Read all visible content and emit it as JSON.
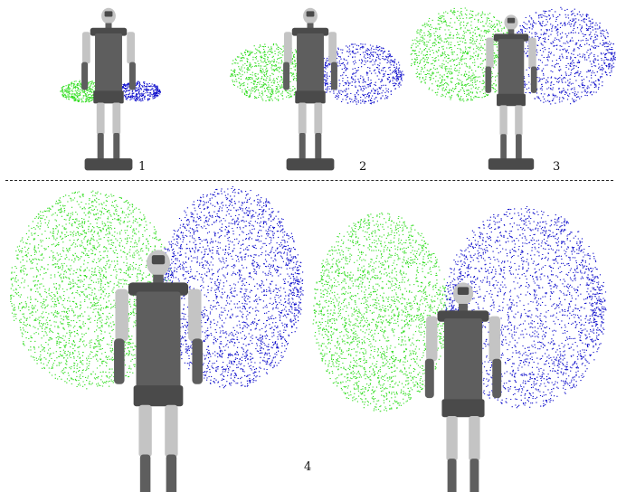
{
  "figure": {
    "panel_labels": [
      "1",
      "2",
      "3",
      "4"
    ],
    "colors": {
      "left_cloud": "#33dd22",
      "right_cloud": "#1111cc",
      "robot_body": "#5e5e5e",
      "robot_light": "#c4c4c4",
      "robot_dark": "#4a4a4a",
      "divider": "#222222"
    }
  }
}
